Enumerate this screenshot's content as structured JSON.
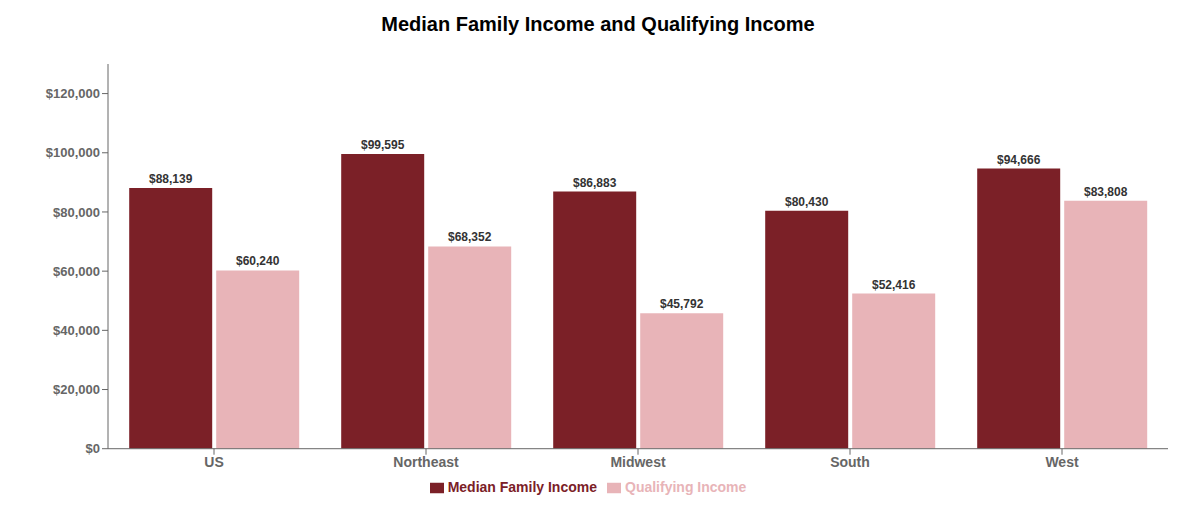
{
  "chart_data": {
    "type": "bar",
    "title": "Median Family Income and Qualifying Income",
    "categories": [
      "US",
      "Northeast",
      "Midwest",
      "South",
      "West"
    ],
    "series": [
      {
        "name": "Median Family Income",
        "color": "#7B2027",
        "values": [
          88139,
          99595,
          86883,
          80430,
          94666
        ],
        "value_labels": [
          "$88,139",
          "$99,595",
          "$86,883",
          "$80,430",
          "$94,666"
        ]
      },
      {
        "name": "Qualifying Income",
        "color": "#E8B4B8",
        "values": [
          60240,
          68352,
          45792,
          52416,
          83808
        ],
        "value_labels": [
          "$60,240",
          "$68,352",
          "$45,792",
          "$52,416",
          "$83,808"
        ]
      }
    ],
    "ylim": [
      0,
      130000
    ],
    "yticks": [
      {
        "value": 0,
        "label": "$0"
      },
      {
        "value": 20000,
        "label": "$20,000"
      },
      {
        "value": 40000,
        "label": "$40,000"
      },
      {
        "value": 60000,
        "label": "$60,000"
      },
      {
        "value": 80000,
        "label": "$80,000"
      },
      {
        "value": 100000,
        "label": "$100,000"
      },
      {
        "value": 120000,
        "label": "$120,000"
      }
    ],
    "grid": false,
    "data_labels": true,
    "legend": "bottom"
  }
}
